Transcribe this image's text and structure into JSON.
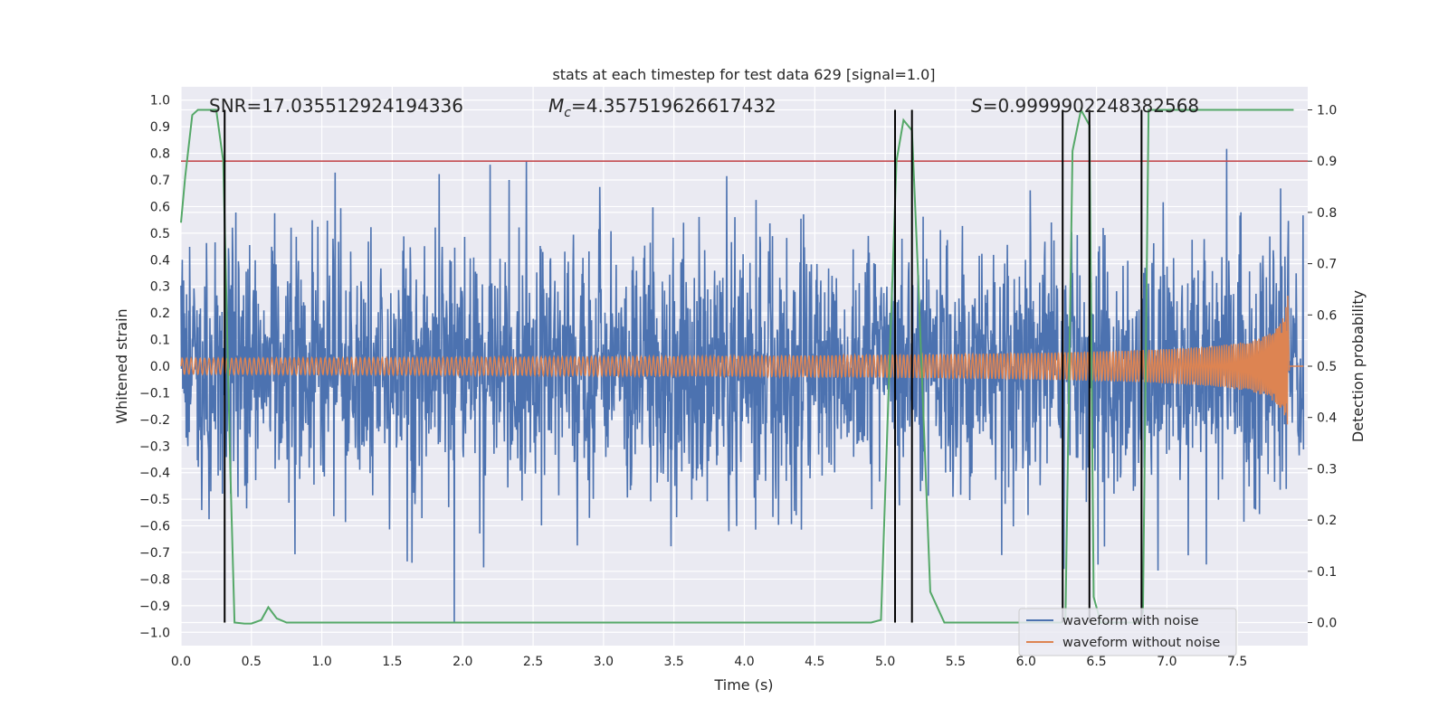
{
  "chart_data": {
    "type": "line",
    "title": "stats at each timestep for test data 629 [signal=1.0]",
    "xlabel": "Time (s)",
    "ylabel_left": "Whitened strain",
    "ylabel_right": "Detection probability",
    "xlim": [
      0.0,
      8.0
    ],
    "ylim_left": [
      -1.05,
      1.05
    ],
    "ylim_right": [
      -0.045,
      1.045
    ],
    "x_ticks": [
      "0.0",
      "0.5",
      "1.0",
      "1.5",
      "2.0",
      "2.5",
      "3.0",
      "3.5",
      "4.0",
      "4.5",
      "5.0",
      "5.5",
      "6.0",
      "6.5",
      "7.0",
      "7.5"
    ],
    "y_ticks_left": [
      "−1.0",
      "−0.9",
      "−0.8",
      "−0.7",
      "−0.6",
      "−0.5",
      "−0.4",
      "−0.3",
      "−0.2",
      "−0.1",
      "0.0",
      "0.1",
      "0.2",
      "0.3",
      "0.4",
      "0.5",
      "0.6",
      "0.7",
      "0.8",
      "0.9",
      "1.0"
    ],
    "y_ticks_right": [
      "0.0",
      "0.1",
      "0.2",
      "0.3",
      "0.4",
      "0.5",
      "0.6",
      "0.7",
      "0.8",
      "0.9",
      "1.0"
    ],
    "grid": true,
    "legend_position": "lower-right",
    "annotations": {
      "snr": "SNR=17.035512924194336",
      "mc_symbol": "M",
      "mc_sub": "c",
      "mc_value": "=4.357519626617432",
      "s_symbol": "S",
      "s_value": "=0.9999902248382568"
    },
    "threshold": {
      "value": 0.9,
      "axis": "right",
      "color": "#c44e52"
    },
    "vertical_lines": [
      0.31,
      5.07,
      5.19,
      6.26,
      6.45,
      6.82
    ],
    "series": [
      {
        "name": "waveform with noise",
        "axis": "left",
        "color": "#4c72b0",
        "description_envelope": {
          "noise_rms": 0.22,
          "peak_max": 1.0
        }
      },
      {
        "name": "waveform without noise",
        "axis": "left",
        "color": "#dd8452",
        "chirp": {
          "t_end": 7.87,
          "amp_start": 0.03,
          "amp_end": 0.4
        }
      },
      {
        "name": "",
        "axis": "right",
        "color": "#55a868",
        "x": [
          0.0,
          0.03,
          0.08,
          0.12,
          0.17,
          0.22,
          0.25,
          0.3,
          0.35,
          0.38,
          0.45,
          0.5,
          0.57,
          0.62,
          0.68,
          0.75,
          1.0,
          2.0,
          3.0,
          4.0,
          4.5,
          4.9,
          4.97,
          5.03,
          5.08,
          5.13,
          5.19,
          5.23,
          5.32,
          5.42,
          5.6,
          6.0,
          6.2,
          6.25,
          6.28,
          6.33,
          6.39,
          6.45,
          6.48,
          6.53,
          6.6,
          6.7,
          6.8,
          6.83,
          6.87,
          6.92,
          7.0,
          7.5,
          7.9
        ],
        "y": [
          0.78,
          0.87,
          0.99,
          1.0,
          1.0,
          1.0,
          1.0,
          0.9,
          0.3,
          0.0,
          -0.002,
          -0.002,
          0.005,
          0.03,
          0.008,
          0.0,
          0.0,
          0.0,
          0.0,
          0.0,
          0.0,
          0.0,
          0.005,
          0.5,
          0.9,
          0.98,
          0.96,
          0.7,
          0.06,
          0.0,
          0.0,
          0.0,
          0.0,
          0.0,
          0.01,
          0.92,
          1.0,
          0.97,
          0.05,
          0.0,
          0.0,
          0.0,
          0.0,
          0.02,
          1.0,
          1.0,
          1.0,
          1.0,
          1.0
        ]
      }
    ]
  }
}
